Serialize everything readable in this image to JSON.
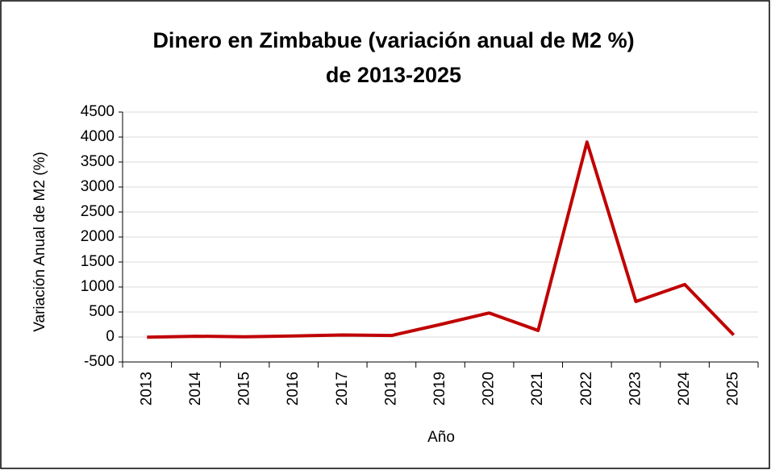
{
  "chart_data": {
    "type": "line",
    "title": [
      "Dinero en Zimbabue (variación anual de M2 %)",
      "de 2013-2025"
    ],
    "x_label": "Año",
    "y_label": "Variación Anual de M2 (%)",
    "categories": [
      "2013",
      "2014",
      "2015",
      "2016",
      "2017",
      "2018",
      "2019",
      "2020",
      "2021",
      "2022",
      "2023",
      "2024",
      "2025"
    ],
    "values": [
      -5,
      15,
      5,
      20,
      40,
      30,
      250,
      480,
      130,
      3900,
      710,
      1050,
      40
    ],
    "color": "#c00000",
    "ylim": [
      -500,
      4500
    ],
    "yticks": [
      -500,
      0,
      500,
      1000,
      1500,
      2000,
      2500,
      3000,
      3500,
      4000,
      4500
    ],
    "grid": true
  }
}
